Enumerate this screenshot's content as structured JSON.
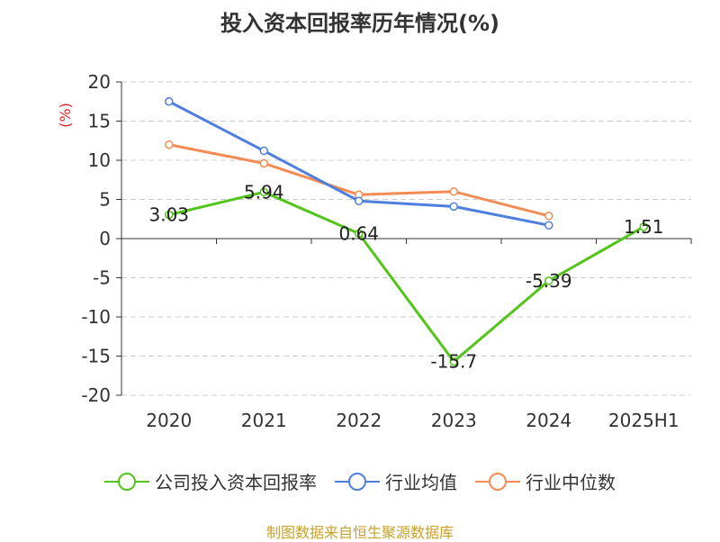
{
  "title": "投入资本回报率历年情况(%)",
  "source": "制图数据来自恒生聚源数据库",
  "chart_data": {
    "type": "line",
    "title": "投入资本回报率历年情况(%)",
    "ylabel": "(%)",
    "categories": [
      "2020",
      "2021",
      "2022",
      "2023",
      "2024",
      "2025H1"
    ],
    "ylim": [
      -20,
      20
    ],
    "yticks": [
      "20",
      "15",
      "10",
      "5",
      "0",
      "-5",
      "-10",
      "-15",
      "-20"
    ],
    "grid": true,
    "legend_position": "bottom",
    "series": [
      {
        "name": "公司投入资本回报率",
        "color": "#52c41a",
        "values": [
          3.03,
          5.94,
          0.64,
          -15.7,
          -5.39,
          1.51
        ],
        "labels": [
          "3.03",
          "5.94",
          "0.64",
          "-15.7",
          "-5.39",
          "1.51"
        ]
      },
      {
        "name": "行业均值",
        "color": "#4e7fdc",
        "values": [
          17.5,
          11.2,
          4.8,
          4.1,
          1.7,
          null
        ]
      },
      {
        "name": "行业中位数",
        "color": "#f28c54",
        "values": [
          12.0,
          9.6,
          5.6,
          6.0,
          2.9,
          null
        ]
      }
    ]
  }
}
